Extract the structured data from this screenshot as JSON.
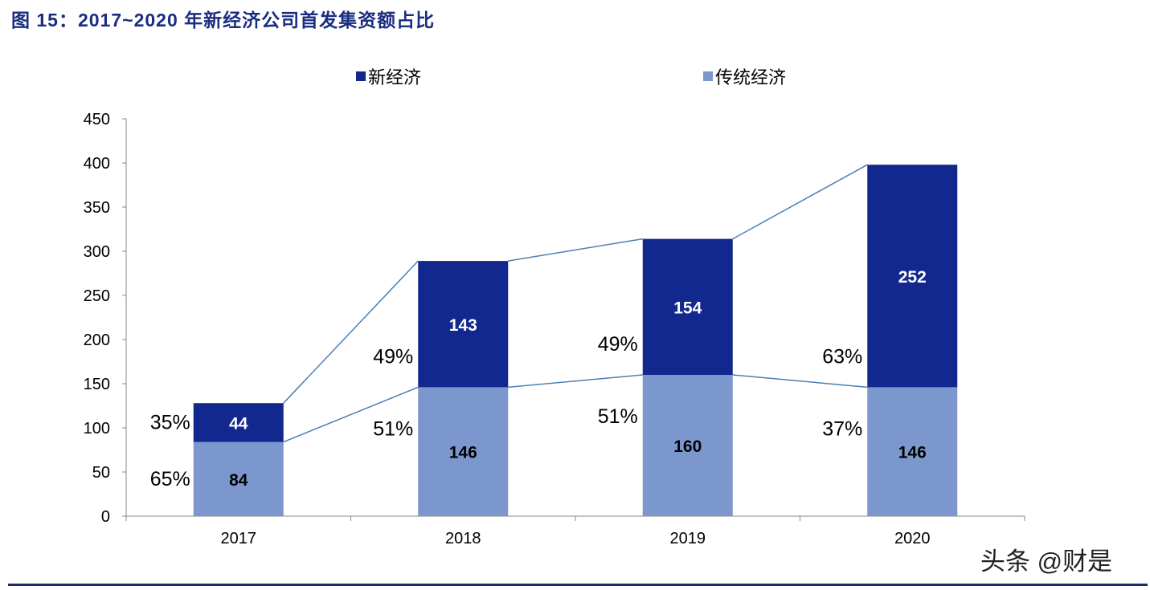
{
  "title": "图 15：2017~2020 年新经济公司首发集资额占比",
  "watermark": "头条 @财是",
  "chart_data": {
    "type": "bar",
    "stacked": true,
    "categories": [
      "2017",
      "2018",
      "2019",
      "2020"
    ],
    "series": [
      {
        "name": "传统经济",
        "color": "#7b97cd",
        "values": [
          84,
          146,
          160,
          146
        ],
        "percent_labels": [
          "65%",
          "51%",
          "51%",
          "37%"
        ]
      },
      {
        "name": "新经济",
        "color": "#13288f",
        "values": [
          44,
          143,
          154,
          252
        ],
        "percent_labels": [
          "35%",
          "49%",
          "49%",
          "63%"
        ]
      }
    ],
    "ylim": [
      0,
      450
    ],
    "yticks": [
      0,
      50,
      100,
      150,
      200,
      250,
      300,
      350,
      400,
      450
    ],
    "legend_position": "top",
    "connector_line_color": "#4a7fb5",
    "xlabel": "",
    "ylabel": ""
  }
}
